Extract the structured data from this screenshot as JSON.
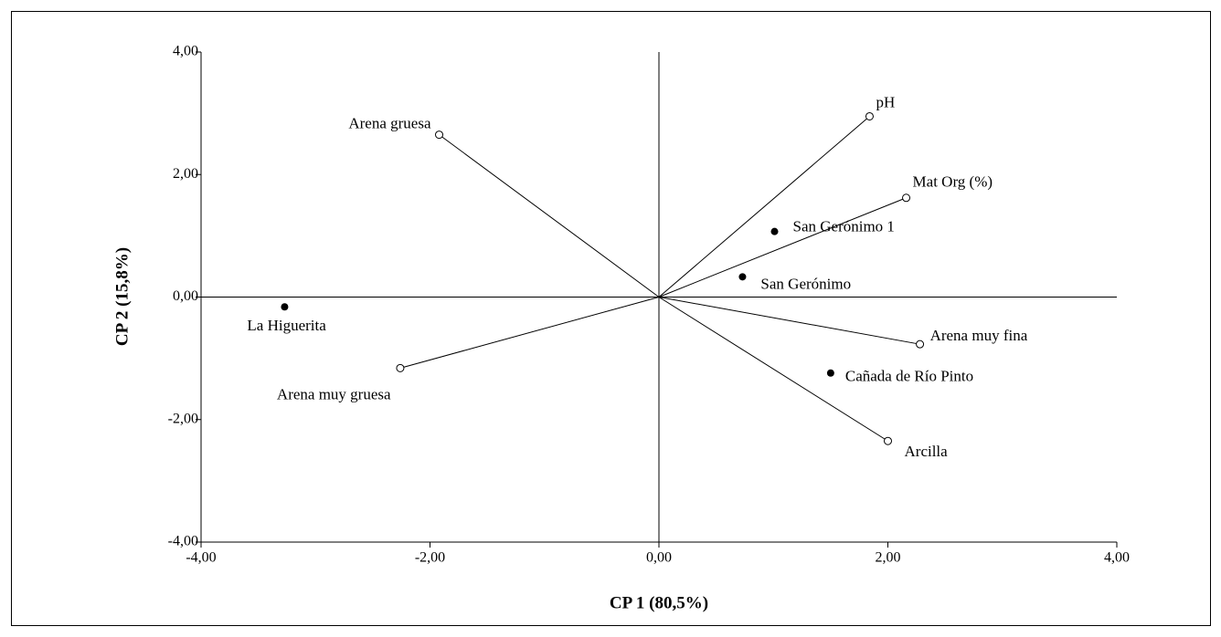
{
  "chart_data": {
    "type": "scatter",
    "x_label": "CP 1 (80,5%)",
    "y_label": "CP 2 (15,8%)",
    "xlim": [
      -4,
      4
    ],
    "ylim": [
      -4,
      4
    ],
    "xticks": [
      {
        "value": -4,
        "label": "-4,00"
      },
      {
        "value": -2,
        "label": "-2,00"
      },
      {
        "value": 0,
        "label": "0,00"
      },
      {
        "value": 2,
        "label": "2,00"
      },
      {
        "value": 4,
        "label": "4,00"
      }
    ],
    "yticks": [
      {
        "value": -4,
        "label": "-4,00"
      },
      {
        "value": -2,
        "label": "-2,00"
      },
      {
        "value": 0,
        "label": "0,00"
      },
      {
        "value": 2,
        "label": "2,00"
      },
      {
        "value": 4,
        "label": "4,00"
      }
    ],
    "points": [
      {
        "label": "La Higuerita",
        "x": -3.27,
        "y": -0.16
      },
      {
        "label": "San Gerónimo 1",
        "x": 1.01,
        "y": 1.07
      },
      {
        "label": "San Gerónimo",
        "x": 0.73,
        "y": 0.33
      },
      {
        "label": "Cañada de Río Pinto",
        "x": 1.5,
        "y": -1.24
      }
    ],
    "vectors": [
      {
        "label": "pH",
        "x": 1.84,
        "y": 2.95
      },
      {
        "label": "Arena gruesa",
        "x": -1.92,
        "y": 2.65
      },
      {
        "label": "Mat Org (%)",
        "x": 2.16,
        "y": 1.62
      },
      {
        "label": "Arena muy fina",
        "x": 2.28,
        "y": -0.77
      },
      {
        "label": "Arcilla",
        "x": 2.0,
        "y": -2.35
      },
      {
        "label": "Arena muy gruesa",
        "x": -2.26,
        "y": -1.16
      }
    ]
  }
}
